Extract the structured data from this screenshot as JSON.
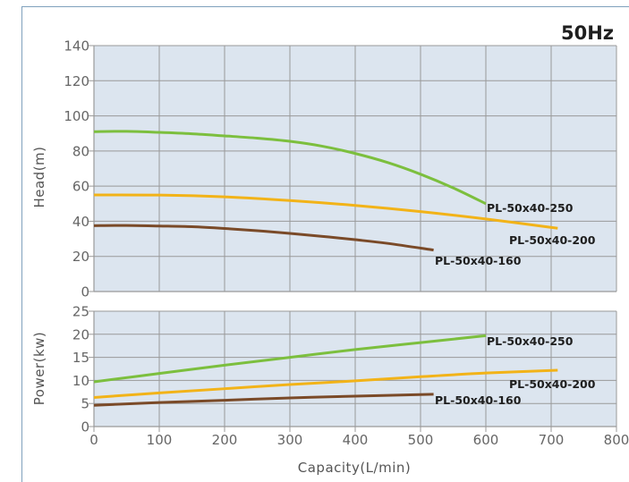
{
  "chart_data": [
    {
      "type": "line",
      "panel": "head",
      "title": "50Hz",
      "xlabel": "",
      "ylabel": "Head(m)",
      "xlim": [
        0,
        800
      ],
      "ylim": [
        0,
        140
      ],
      "yticks": [
        0,
        20,
        40,
        60,
        80,
        100,
        120,
        140
      ],
      "grid": true,
      "series": [
        {
          "name": "PL-50x40-250",
          "color": "#7cbf3e",
          "x": [
            0,
            50,
            100,
            150,
            200,
            250,
            300,
            350,
            400,
            450,
            500,
            550,
            600
          ],
          "y": [
            91,
            91.2,
            90.6,
            89.8,
            88.6,
            87.3,
            85.5,
            82.7,
            78.6,
            73.4,
            66.8,
            59,
            50
          ]
        },
        {
          "name": "PL-50x40-200",
          "color": "#f2b318",
          "x": [
            0,
            100,
            200,
            300,
            400,
            500,
            600,
            710
          ],
          "y": [
            55,
            54.9,
            53.9,
            51.8,
            49,
            45.5,
            41.3,
            36
          ]
        },
        {
          "name": "PL-50x40-160",
          "color": "#7a4a28",
          "x": [
            0,
            50,
            100,
            150,
            200,
            250,
            300,
            350,
            400,
            450,
            520
          ],
          "y": [
            37.5,
            37.6,
            37.3,
            36.9,
            35.9,
            34.6,
            33.1,
            31.4,
            29.5,
            27.4,
            23.6
          ]
        }
      ]
    },
    {
      "type": "line",
      "panel": "power",
      "xlabel": "Capacity(L/min)",
      "ylabel": "Power(kw)",
      "xlim": [
        0,
        800
      ],
      "ylim": [
        0,
        25
      ],
      "xticks": [
        0,
        100,
        200,
        300,
        400,
        500,
        600,
        700,
        800
      ],
      "yticks": [
        0,
        5,
        10,
        15,
        20,
        25
      ],
      "grid": true,
      "series": [
        {
          "name": "PL-50x40-250",
          "color": "#7cbf3e",
          "x": [
            0,
            100,
            200,
            300,
            400,
            500,
            600
          ],
          "y": [
            9.7,
            11.5,
            13.3,
            15,
            16.7,
            18.2,
            19.7
          ]
        },
        {
          "name": "PL-50x40-200",
          "color": "#f2b318",
          "x": [
            0,
            100,
            200,
            300,
            400,
            500,
            600,
            710
          ],
          "y": [
            6.3,
            7.3,
            8.2,
            9.1,
            9.9,
            10.8,
            11.6,
            12.2
          ]
        },
        {
          "name": "PL-50x40-160",
          "color": "#7a4a28",
          "x": [
            0,
            100,
            200,
            300,
            400,
            520
          ],
          "y": [
            4.6,
            5.2,
            5.7,
            6.2,
            6.6,
            7
          ]
        }
      ]
    }
  ],
  "style": {
    "plot_bg": "#dce5ef",
    "grid_color": "#999999",
    "frame_border": "#7fa1bd",
    "tick_color": "#666666",
    "label_color": "#1e1e1e"
  }
}
